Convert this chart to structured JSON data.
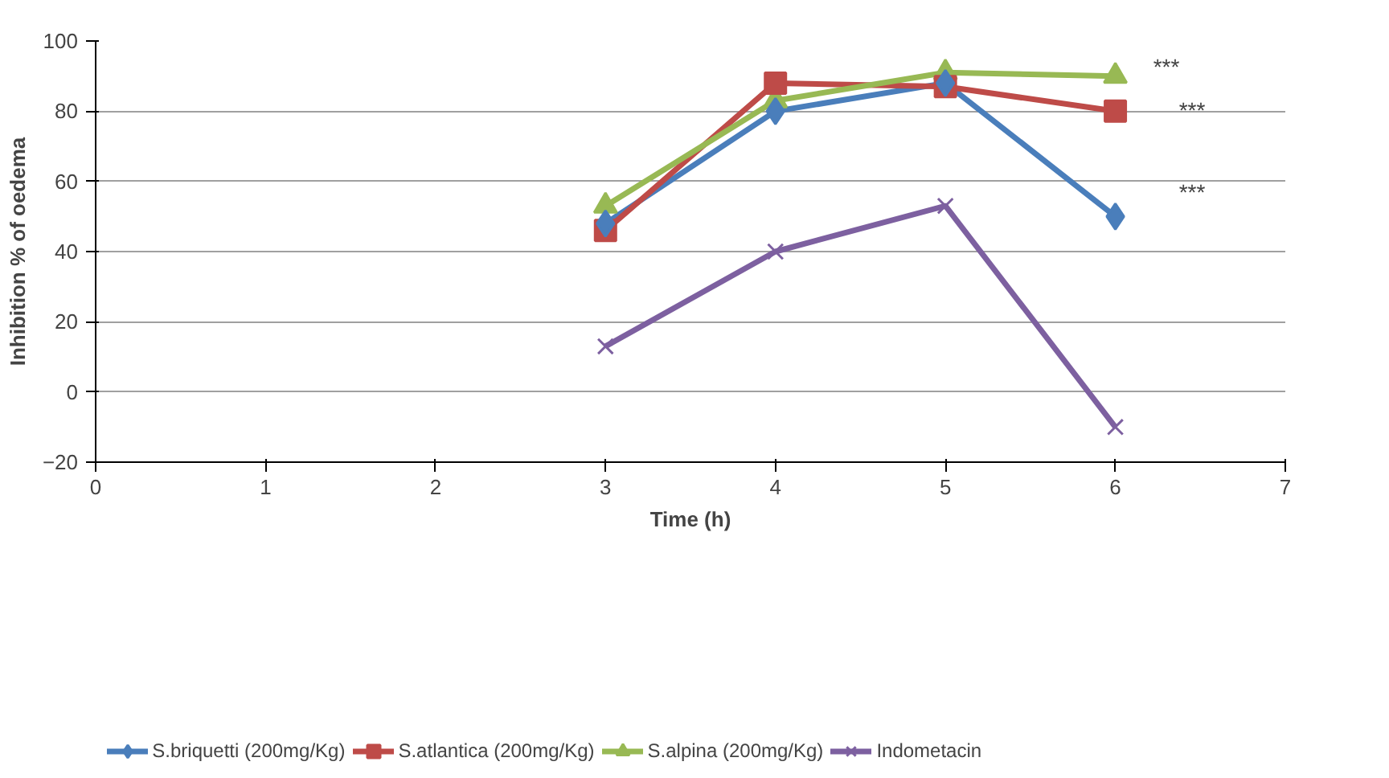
{
  "chart_data": {
    "type": "line",
    "xlabel": "Time (h)",
    "ylabel": "Inhibition % of oedema",
    "xlim": [
      0,
      7
    ],
    "xticks": [
      0,
      1,
      2,
      3,
      4,
      5,
      6,
      7
    ],
    "ylim": [
      -20,
      100
    ],
    "yticks": [
      -20,
      0,
      20,
      40,
      60,
      80,
      100
    ],
    "grid": "y",
    "legend": "bottom",
    "series": [
      {
        "name": "S.briquetti (200mg/Kg)",
        "color": "#4a7ebb",
        "marker": "diamond",
        "x": [
          3,
          4,
          5,
          6
        ],
        "values": [
          48,
          80,
          88,
          50
        ]
      },
      {
        "name": "S.atlantica (200mg/Kg)",
        "color": "#be4b48",
        "marker": "square",
        "x": [
          3,
          4,
          5,
          6
        ],
        "values": [
          46,
          88,
          87,
          80
        ]
      },
      {
        "name": "S.alpina (200mg/Kg)",
        "color": "#98b954",
        "marker": "triangle",
        "x": [
          3,
          4,
          5,
          6
        ],
        "values": [
          53,
          83,
          91,
          90
        ]
      },
      {
        "name": "Indometacin",
        "color": "#7d60a0",
        "marker": "cross",
        "x": [
          3,
          4,
          5,
          6
        ],
        "values": [
          13,
          40,
          53,
          -10
        ]
      }
    ],
    "annotations": [
      "***",
      "***",
      "***"
    ]
  }
}
